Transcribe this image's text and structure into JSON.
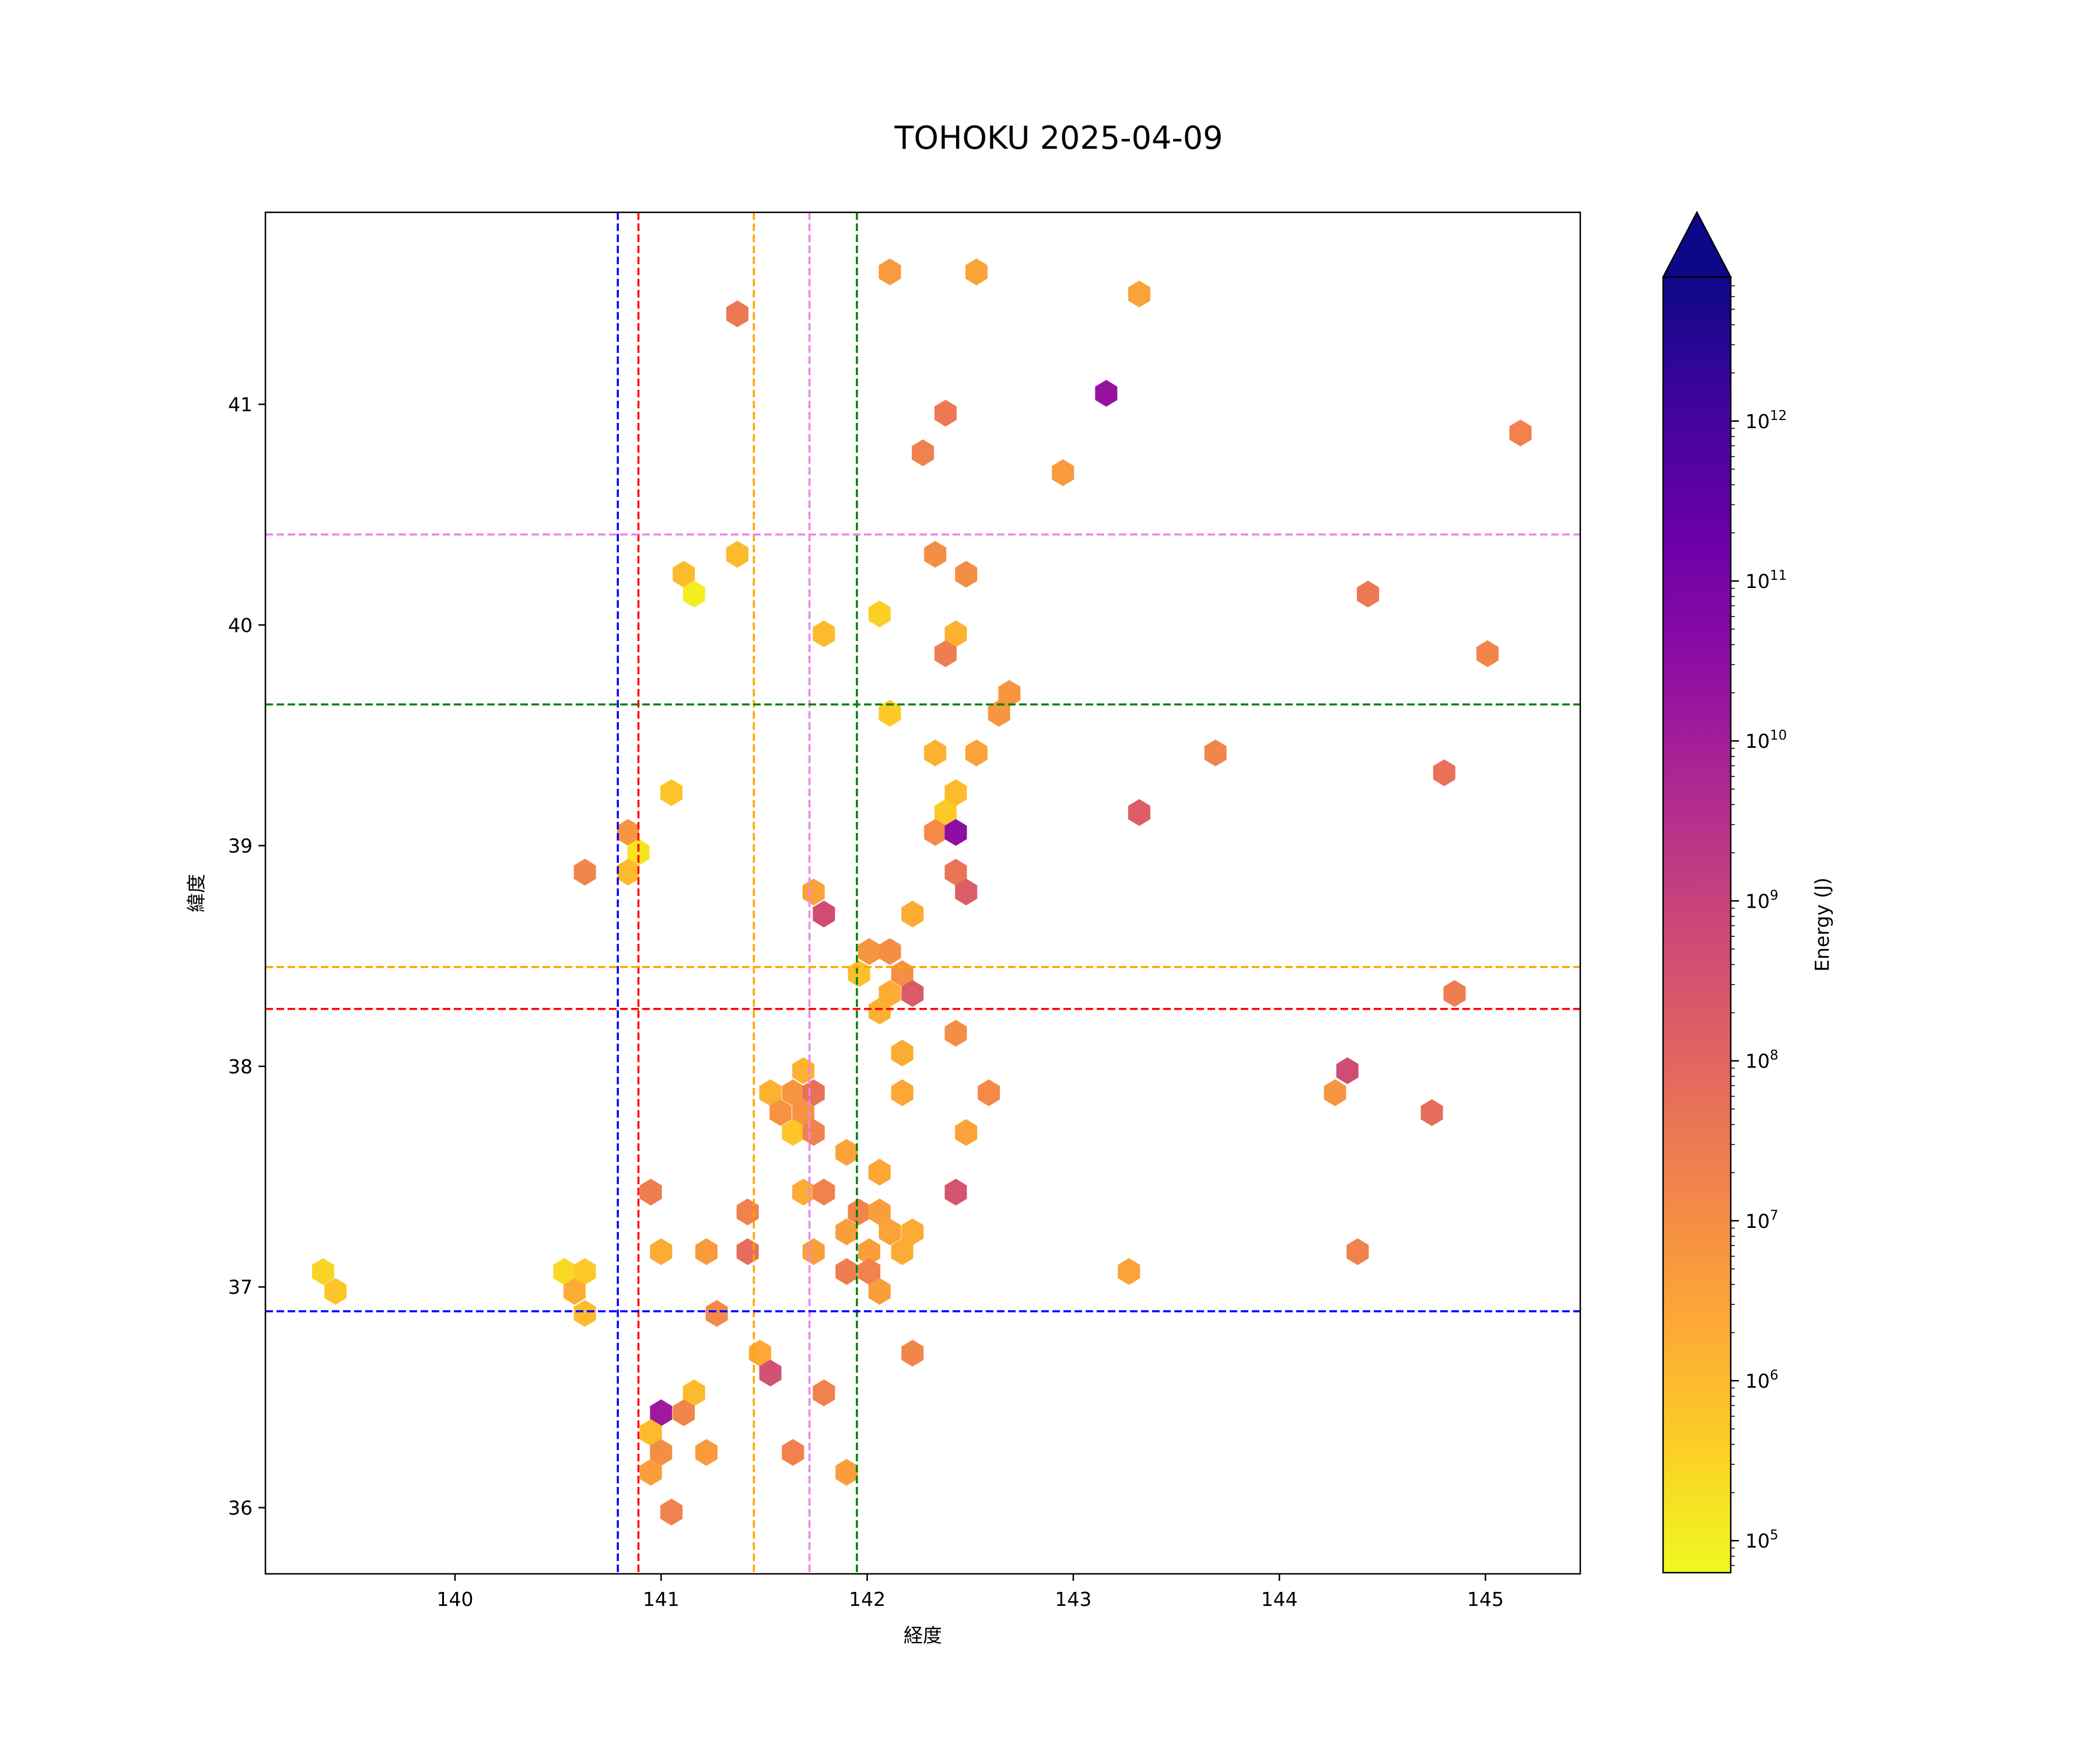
{
  "chart_data": {
    "type": "hexbin",
    "title": "TOHOKU 2025-04-09",
    "xlabel": "経度",
    "ylabel": "緯度",
    "xlim": [
      139.08,
      145.46
    ],
    "ylim": [
      35.7,
      41.87
    ],
    "xticks": [
      140,
      141,
      142,
      143,
      144,
      145
    ],
    "yticks": [
      36,
      37,
      38,
      39,
      40,
      41
    ],
    "colorbar": {
      "label": "Energy (J)",
      "scale": "log",
      "colormap": "plasma_r",
      "log10_range": [
        4.8,
        12.9
      ],
      "extend": "max",
      "ticks": [
        {
          "exp": 5,
          "base": "10",
          "sup": "5"
        },
        {
          "exp": 6,
          "base": "10",
          "sup": "6"
        },
        {
          "exp": 7,
          "base": "10",
          "sup": "7"
        },
        {
          "exp": 8,
          "base": "10",
          "sup": "8"
        },
        {
          "exp": 9,
          "base": "10",
          "sup": "9"
        },
        {
          "exp": 10,
          "base": "10",
          "sup": "10"
        },
        {
          "exp": 11,
          "base": "10",
          "sup": "11"
        },
        {
          "exp": 12,
          "base": "10",
          "sup": "12"
        }
      ]
    },
    "vlines": [
      {
        "x": 140.79,
        "color": "#0000ff"
      },
      {
        "x": 140.89,
        "color": "#ff0000"
      },
      {
        "x": 141.45,
        "color": "#ffa500"
      },
      {
        "x": 141.72,
        "color": "#ee82ee"
      },
      {
        "x": 141.95,
        "color": "#008000"
      }
    ],
    "hlines": [
      {
        "y": 40.41,
        "color": "#ee82ee"
      },
      {
        "y": 39.64,
        "color": "#008000"
      },
      {
        "y": 38.45,
        "color": "#ffa500"
      },
      {
        "y": 38.26,
        "color": "#ff0000"
      },
      {
        "y": 36.89,
        "color": "#0000ff"
      }
    ],
    "bins_columns": [
      "lon",
      "lat",
      "log10_energy"
    ],
    "bins": [
      [
        142.11,
        41.6,
        6.7
      ],
      [
        142.53,
        41.6,
        6.5
      ],
      [
        143.32,
        41.5,
        6.5
      ],
      [
        141.37,
        41.41,
        7.5
      ],
      [
        143.16,
        41.05,
        10.3
      ],
      [
        142.38,
        40.96,
        7.5
      ],
      [
        142.27,
        40.78,
        7.3
      ],
      [
        142.95,
        40.69,
        6.7
      ],
      [
        145.17,
        40.87,
        7.3
      ],
      [
        141.37,
        40.32,
        6.0
      ],
      [
        141.11,
        40.23,
        6.0
      ],
      [
        141.16,
        40.14,
        5.0
      ],
      [
        142.33,
        40.32,
        7.0
      ],
      [
        142.48,
        40.23,
        7.0
      ],
      [
        144.43,
        40.14,
        7.5
      ],
      [
        141.79,
        39.96,
        6.0
      ],
      [
        142.06,
        40.05,
        5.6
      ],
      [
        142.43,
        39.96,
        6.2
      ],
      [
        142.38,
        39.87,
        7.4
      ],
      [
        145.01,
        39.87,
        7.2
      ],
      [
        142.69,
        39.69,
        6.8
      ],
      [
        142.64,
        39.6,
        6.8
      ],
      [
        142.11,
        39.6,
        5.7
      ],
      [
        142.33,
        39.42,
        6.2
      ],
      [
        142.53,
        39.42,
        6.5
      ],
      [
        143.69,
        39.42,
        7.2
      ],
      [
        142.43,
        39.24,
        6.0
      ],
      [
        141.05,
        39.24,
        5.8
      ],
      [
        144.8,
        39.33,
        7.7
      ],
      [
        142.38,
        39.15,
        5.7
      ],
      [
        143.32,
        39.15,
        8.2
      ],
      [
        142.33,
        39.06,
        7.1
      ],
      [
        142.43,
        39.06,
        10.5
      ],
      [
        140.84,
        39.06,
        6.8
      ],
      [
        140.89,
        38.97,
        5.2
      ],
      [
        140.84,
        38.88,
        6.0
      ],
      [
        140.63,
        38.88,
        7.2
      ],
      [
        142.43,
        38.88,
        7.6
      ],
      [
        141.74,
        38.79,
        6.5
      ],
      [
        142.48,
        38.79,
        8.2
      ],
      [
        141.79,
        38.69,
        8.7
      ],
      [
        142.22,
        38.69,
        6.3
      ],
      [
        142.01,
        38.52,
        6.8
      ],
      [
        142.11,
        38.52,
        7.0
      ],
      [
        141.96,
        38.42,
        5.9
      ],
      [
        142.17,
        38.42,
        7.0
      ],
      [
        142.11,
        38.33,
        6.3
      ],
      [
        142.22,
        38.33,
        8.3
      ],
      [
        142.06,
        38.25,
        6.2
      ],
      [
        144.85,
        38.33,
        7.4
      ],
      [
        142.43,
        38.15,
        7.0
      ],
      [
        142.17,
        38.06,
        6.3
      ],
      [
        144.33,
        37.98,
        8.7
      ],
      [
        141.69,
        37.98,
        6.2
      ],
      [
        141.53,
        37.88,
        6.2
      ],
      [
        141.64,
        37.88,
        6.8
      ],
      [
        141.74,
        37.88,
        7.7
      ],
      [
        142.17,
        37.88,
        6.4
      ],
      [
        142.59,
        37.88,
        7.1
      ],
      [
        144.27,
        37.88,
        6.8
      ],
      [
        141.58,
        37.79,
        6.9
      ],
      [
        141.69,
        37.79,
        6.9
      ],
      [
        144.74,
        37.79,
        7.8
      ],
      [
        141.64,
        37.7,
        5.8
      ],
      [
        141.74,
        37.7,
        7.3
      ],
      [
        142.48,
        37.7,
        6.5
      ],
      [
        141.9,
        37.61,
        6.5
      ],
      [
        142.06,
        37.52,
        6.4
      ],
      [
        140.95,
        37.43,
        7.4
      ],
      [
        141.69,
        37.43,
        6.3
      ],
      [
        141.79,
        37.43,
        7.3
      ],
      [
        142.43,
        37.43,
        8.5
      ],
      [
        141.42,
        37.34,
        7.3
      ],
      [
        141.96,
        37.34,
        7.2
      ],
      [
        142.06,
        37.34,
        6.6
      ],
      [
        141.9,
        37.25,
        6.6
      ],
      [
        142.11,
        37.25,
        6.5
      ],
      [
        142.22,
        37.25,
        6.3
      ],
      [
        141.0,
        37.16,
        6.3
      ],
      [
        141.22,
        37.16,
        6.7
      ],
      [
        141.42,
        37.16,
        7.8
      ],
      [
        141.74,
        37.16,
        6.6
      ],
      [
        142.01,
        37.16,
        6.6
      ],
      [
        142.17,
        37.16,
        6.3
      ],
      [
        144.38,
        37.16,
        7.3
      ],
      [
        141.9,
        37.07,
        7.4
      ],
      [
        142.01,
        37.07,
        7.3
      ],
      [
        143.27,
        37.07,
        6.5
      ],
      [
        139.36,
        37.07,
        5.5
      ],
      [
        139.42,
        36.98,
        5.8
      ],
      [
        140.53,
        37.07,
        5.4
      ],
      [
        140.63,
        37.07,
        5.7
      ],
      [
        140.58,
        36.98,
        6.3
      ],
      [
        140.63,
        36.88,
        6.0
      ],
      [
        142.06,
        36.98,
        6.6
      ],
      [
        141.27,
        36.88,
        7.1
      ],
      [
        141.48,
        36.7,
        6.4
      ],
      [
        142.22,
        36.7,
        7.2
      ],
      [
        141.53,
        36.61,
        8.6
      ],
      [
        141.79,
        36.52,
        7.3
      ],
      [
        141.16,
        36.52,
        6.0
      ],
      [
        141.0,
        36.43,
        10.1
      ],
      [
        141.11,
        36.43,
        7.2
      ],
      [
        140.95,
        36.34,
        6.0
      ],
      [
        141.0,
        36.25,
        7.0
      ],
      [
        141.22,
        36.25,
        6.7
      ],
      [
        141.64,
        36.25,
        7.3
      ],
      [
        140.95,
        36.16,
        6.6
      ],
      [
        141.9,
        36.16,
        6.6
      ],
      [
        141.05,
        35.98,
        7.3
      ]
    ]
  }
}
